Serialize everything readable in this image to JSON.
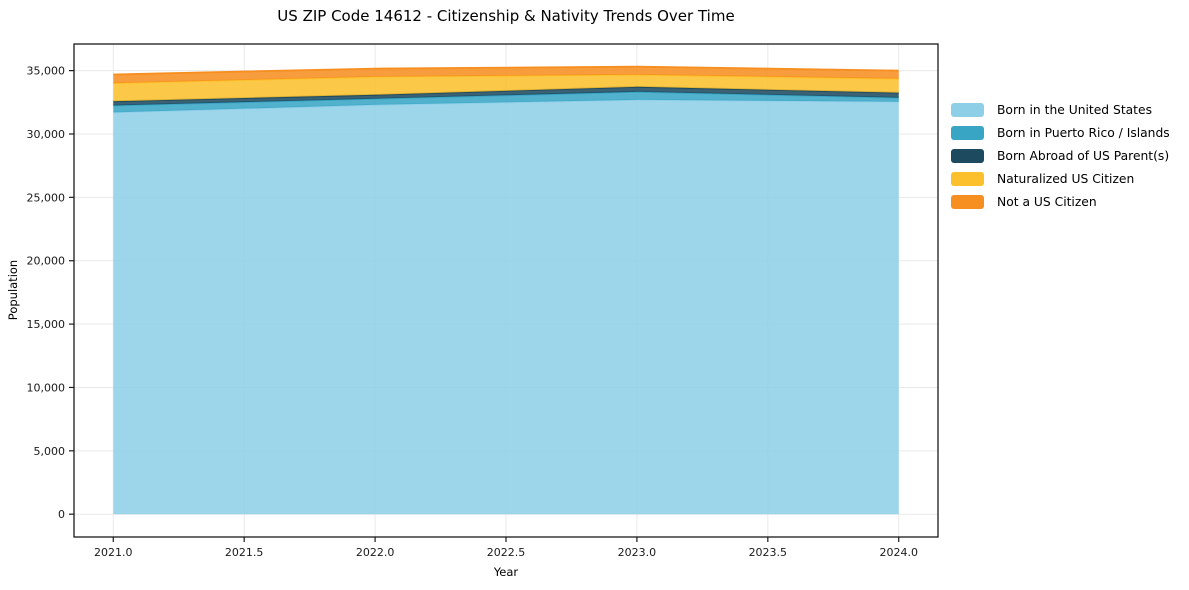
{
  "chart_data": {
    "type": "area",
    "stacked": true,
    "title": "US ZIP Code 14612 - Citizenship & Nativity Trends Over Time",
    "xlabel": "Year",
    "ylabel": "Population",
    "x": [
      2021,
      2022,
      2023,
      2024
    ],
    "series": [
      {
        "name": "Born in the United States",
        "color": "#8ecfe8",
        "values": [
          31700,
          32300,
          32700,
          32550
        ]
      },
      {
        "name": "Born in Puerto Rico / Islands",
        "color": "#38a5c4",
        "values": [
          550,
          480,
          630,
          310
        ]
      },
      {
        "name": "Born Abroad of US Parent(s)",
        "color": "#1d4a5f",
        "values": [
          330,
          310,
          390,
          400
        ]
      },
      {
        "name": "Naturalized US Citizen",
        "color": "#fcc02c",
        "values": [
          1430,
          1420,
          950,
          1100
        ]
      },
      {
        "name": "Not a US Citizen",
        "color": "#f78f20",
        "values": [
          680,
          650,
          640,
          640
        ]
      }
    ],
    "xlim": [
      2020.85,
      2024.15
    ],
    "ylim": [
      -1800,
      37100
    ],
    "xtick_values": [
      2021.0,
      2021.5,
      2022.0,
      2022.5,
      2023.0,
      2023.5,
      2024.0
    ],
    "xtick_labels": [
      "2021.0",
      "2021.5",
      "2022.0",
      "2022.5",
      "2023.0",
      "2023.5",
      "2024.0"
    ],
    "ytick_values": [
      0,
      5000,
      10000,
      15000,
      20000,
      25000,
      30000,
      35000
    ],
    "ytick_labels": [
      "0",
      "5,000",
      "10,000",
      "15,000",
      "20,000",
      "25,000",
      "30,000",
      "35,000"
    ],
    "grid": true,
    "legend_position": "right",
    "colors": {
      "grid": "#e9e9e9",
      "spine": "#1a1a1a",
      "tick_text": "#1a1a1a",
      "background": "#ffffff"
    }
  }
}
